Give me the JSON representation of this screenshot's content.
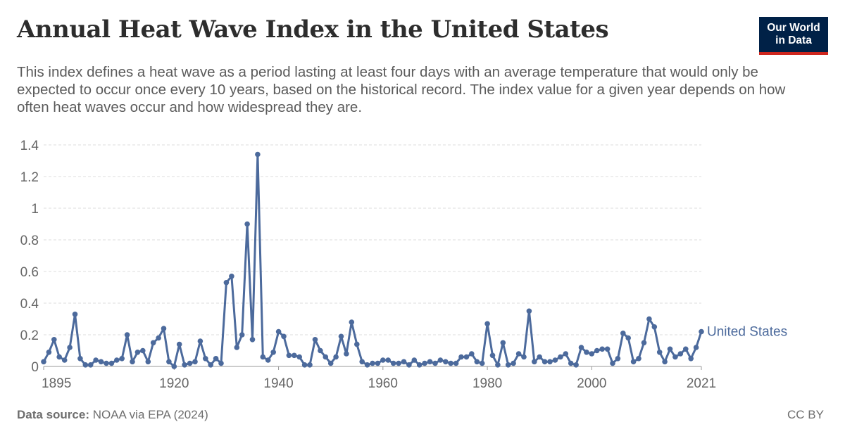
{
  "header": {
    "title": "Annual Heat Wave Index in the United States",
    "subtitle": "This index defines a heat wave as a period lasting at least four days with an average temperature that would only be expected to occur once every 10 years, based on the historical record. The index value for a given year depends on how often heat waves occur and how widespread they are.",
    "logo_line1": "Our World",
    "logo_line2": "in Data"
  },
  "footer": {
    "source_label": "Data source:",
    "source_text": "NOAA via EPA (2024)",
    "license": "CC BY"
  },
  "colors": {
    "series": "#4c6a9c",
    "grid": "#dddddd",
    "axis_text": "#666666",
    "logo_bg": "#002147",
    "logo_accent": "#ce261e"
  },
  "chart_data": {
    "type": "line",
    "ylim": [
      0,
      1.4
    ],
    "yticks": [
      0,
      0.2,
      0.4,
      0.6,
      0.8,
      1,
      1.2,
      1.4
    ],
    "ytick_labels": [
      "0",
      "0.2",
      "0.4",
      "0.6",
      "0.8",
      "1",
      "1.2",
      "1.4"
    ],
    "xlim": [
      1895,
      2021
    ],
    "xticks": [
      1895,
      1920,
      1940,
      1960,
      1980,
      2000,
      2021
    ],
    "xtick_labels": [
      "1895",
      "1920",
      "1940",
      "1960",
      "1980",
      "2000",
      "2021"
    ],
    "grid": "horizontal dashed",
    "series": [
      {
        "name": "United States",
        "x": [
          1895,
          1896,
          1897,
          1898,
          1899,
          1900,
          1901,
          1902,
          1903,
          1904,
          1905,
          1906,
          1907,
          1908,
          1909,
          1910,
          1911,
          1912,
          1913,
          1914,
          1915,
          1916,
          1917,
          1918,
          1919,
          1920,
          1921,
          1922,
          1923,
          1924,
          1925,
          1926,
          1927,
          1928,
          1929,
          1930,
          1931,
          1932,
          1933,
          1934,
          1935,
          1936,
          1937,
          1938,
          1939,
          1940,
          1941,
          1942,
          1943,
          1944,
          1945,
          1946,
          1947,
          1948,
          1949,
          1950,
          1951,
          1952,
          1953,
          1954,
          1955,
          1956,
          1957,
          1958,
          1959,
          1960,
          1961,
          1962,
          1963,
          1964,
          1965,
          1966,
          1967,
          1968,
          1969,
          1970,
          1971,
          1972,
          1973,
          1974,
          1975,
          1976,
          1977,
          1978,
          1979,
          1980,
          1981,
          1982,
          1983,
          1984,
          1985,
          1986,
          1987,
          1988,
          1989,
          1990,
          1991,
          1992,
          1993,
          1994,
          1995,
          1996,
          1997,
          1998,
          1999,
          2000,
          2001,
          2002,
          2003,
          2004,
          2005,
          2006,
          2007,
          2008,
          2009,
          2010,
          2011,
          2012,
          2013,
          2014,
          2015,
          2016,
          2017,
          2018,
          2019,
          2020,
          2021
        ],
        "values": [
          0.03,
          0.09,
          0.17,
          0.06,
          0.04,
          0.12,
          0.33,
          0.05,
          0.01,
          0.01,
          0.04,
          0.03,
          0.02,
          0.02,
          0.04,
          0.05,
          0.2,
          0.03,
          0.09,
          0.1,
          0.03,
          0.15,
          0.18,
          0.24,
          0.03,
          0.0,
          0.14,
          0.01,
          0.02,
          0.03,
          0.16,
          0.05,
          0.01,
          0.05,
          0.02,
          0.53,
          0.57,
          0.12,
          0.2,
          0.9,
          0.17,
          1.34,
          0.06,
          0.04,
          0.09,
          0.22,
          0.19,
          0.07,
          0.07,
          0.06,
          0.01,
          0.01,
          0.17,
          0.1,
          0.06,
          0.02,
          0.06,
          0.19,
          0.08,
          0.28,
          0.14,
          0.03,
          0.01,
          0.02,
          0.02,
          0.04,
          0.04,
          0.02,
          0.02,
          0.03,
          0.01,
          0.04,
          0.01,
          0.02,
          0.03,
          0.02,
          0.04,
          0.03,
          0.02,
          0.02,
          0.06,
          0.06,
          0.08,
          0.03,
          0.02,
          0.27,
          0.07,
          0.01,
          0.15,
          0.01,
          0.02,
          0.08,
          0.06,
          0.35,
          0.03,
          0.06,
          0.03,
          0.03,
          0.04,
          0.06,
          0.08,
          0.02,
          0.01,
          0.12,
          0.09,
          0.08,
          0.1,
          0.11,
          0.11,
          0.02,
          0.05,
          0.21,
          0.18,
          0.03,
          0.05,
          0.15,
          0.3,
          0.25,
          0.09,
          0.03,
          0.11,
          0.06,
          0.08,
          0.11,
          0.05,
          0.12,
          0.22
        ]
      }
    ]
  }
}
